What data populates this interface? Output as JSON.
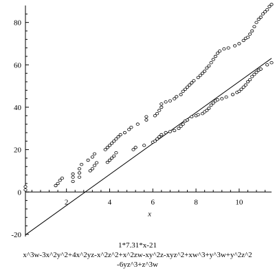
{
  "chart_data": {
    "type": "scatter",
    "title": "",
    "xlabel": "x",
    "ylabel": "",
    "xlim": [
      0.1,
      11.5
    ],
    "ylim": [
      -21,
      88
    ],
    "x_ticks": [
      "2",
      "4",
      "6",
      "8",
      "10"
    ],
    "y_ticks": [
      "-20",
      "0",
      "20",
      "40",
      "60",
      "80"
    ],
    "grid": false,
    "series": [
      {
        "kind": "line",
        "values": [
          [
            0.1,
            -20.27
          ],
          [
            11.5,
            63.07
          ]
        ]
      },
      {
        "kind": "points",
        "values": [
          [
            0.1,
            1
          ],
          [
            0.1,
            2.5
          ],
          [
            1.5,
            3
          ],
          [
            1.6,
            4
          ],
          [
            1.7,
            5.5
          ],
          [
            1.8,
            6.5
          ],
          [
            2.3,
            5
          ],
          [
            2.3,
            7
          ],
          [
            2.3,
            8.5
          ],
          [
            2.6,
            7
          ],
          [
            2.6,
            9
          ],
          [
            2.6,
            11
          ],
          [
            2.7,
            13
          ],
          [
            3.1,
            10
          ],
          [
            3.2,
            11
          ],
          [
            3.3,
            12.5
          ],
          [
            3.4,
            13.8
          ],
          [
            3.9,
            14
          ],
          [
            4.0,
            15
          ],
          [
            4.1,
            16
          ],
          [
            4.2,
            17
          ],
          [
            4.3,
            18.5
          ],
          [
            5.1,
            20
          ],
          [
            5.2,
            21
          ],
          [
            5.6,
            22
          ],
          [
            6.0,
            23.5
          ],
          [
            6.1,
            24
          ],
          [
            6.2,
            25
          ],
          [
            6.3,
            26
          ],
          [
            6.4,
            27
          ],
          [
            6.6,
            28
          ],
          [
            6.8,
            28.5
          ],
          [
            7.0,
            29
          ],
          [
            7.2,
            30
          ],
          [
            7.3,
            31
          ],
          [
            7.4,
            32
          ],
          [
            7.5,
            33.5
          ],
          [
            7.6,
            34
          ],
          [
            7.8,
            35.5
          ],
          [
            8.0,
            36
          ],
          [
            8.1,
            36.5
          ],
          [
            8.3,
            37
          ],
          [
            8.4,
            37.8
          ],
          [
            8.5,
            38.5
          ],
          [
            8.6,
            39.5
          ],
          [
            8.7,
            41
          ],
          [
            8.8,
            42
          ],
          [
            8.9,
            43
          ],
          [
            9.0,
            43.5
          ],
          [
            9.2,
            44
          ],
          [
            9.4,
            44.8
          ],
          [
            9.7,
            46
          ],
          [
            9.9,
            47
          ],
          [
            10.0,
            47.5
          ],
          [
            10.1,
            48.5
          ],
          [
            10.2,
            49.5
          ],
          [
            10.3,
            50.5
          ],
          [
            10.4,
            52
          ],
          [
            10.5,
            53
          ],
          [
            10.6,
            54.5
          ],
          [
            10.7,
            55.5
          ],
          [
            10.8,
            56.5
          ],
          [
            10.9,
            57.5
          ],
          [
            11.0,
            58
          ],
          [
            11.3,
            60
          ],
          [
            11.5,
            61
          ]
        ]
      },
      {
        "kind": "points",
        "values": [
          [
            3.0,
            15
          ],
          [
            3.2,
            16.5
          ],
          [
            3.3,
            18
          ],
          [
            3.8,
            20
          ],
          [
            3.9,
            21
          ],
          [
            4.0,
            22
          ],
          [
            4.1,
            23
          ],
          [
            4.2,
            24
          ],
          [
            4.3,
            25
          ],
          [
            4.4,
            26
          ],
          [
            4.5,
            27
          ],
          [
            4.7,
            28
          ],
          [
            4.9,
            29.5
          ],
          [
            5.0,
            30.5
          ],
          [
            5.3,
            32
          ],
          [
            5.7,
            34
          ],
          [
            5.7,
            35.5
          ],
          [
            6.1,
            36
          ],
          [
            6.2,
            37
          ],
          [
            6.3,
            38.5
          ],
          [
            6.4,
            40
          ],
          [
            6.4,
            41.5
          ],
          [
            6.6,
            42.5
          ],
          [
            6.8,
            43
          ],
          [
            7.0,
            44
          ],
          [
            7.1,
            45
          ],
          [
            7.3,
            46
          ],
          [
            7.4,
            47.5
          ],
          [
            7.5,
            48.5
          ],
          [
            7.6,
            49.5
          ],
          [
            7.7,
            50.5
          ],
          [
            7.8,
            51.5
          ],
          [
            7.9,
            52.5
          ],
          [
            8.1,
            54
          ],
          [
            8.2,
            55
          ],
          [
            8.3,
            56
          ],
          [
            8.4,
            57
          ],
          [
            8.5,
            58.5
          ],
          [
            8.6,
            59.5
          ],
          [
            8.7,
            61
          ],
          [
            8.8,
            62.5
          ],
          [
            8.9,
            64
          ],
          [
            9.0,
            65.5
          ],
          [
            9.1,
            66.5
          ],
          [
            9.3,
            67.5
          ],
          [
            9.5,
            68
          ],
          [
            9.8,
            69
          ],
          [
            10.0,
            70
          ],
          [
            10.2,
            71.5
          ],
          [
            10.3,
            72.5
          ],
          [
            10.4,
            73
          ],
          [
            10.5,
            74.5
          ],
          [
            10.6,
            76
          ],
          [
            10.7,
            78
          ],
          [
            10.8,
            80
          ],
          [
            10.9,
            81.5
          ],
          [
            11.0,
            82.5
          ],
          [
            11.1,
            84
          ],
          [
            11.2,
            85
          ],
          [
            11.3,
            86
          ],
          [
            11.4,
            87.5
          ],
          [
            11.5,
            88.5
          ]
        ]
      }
    ]
  },
  "caption": {
    "line1": "1*7.31*x-21",
    "line2": "x^3w-3x^2y^2+4x^2yz-x^2z^2+x^2zw-xy^2z-xyz^2+xw^3+y^3w+y^2z^2",
    "line3": "-6yz^3+z^3w"
  }
}
